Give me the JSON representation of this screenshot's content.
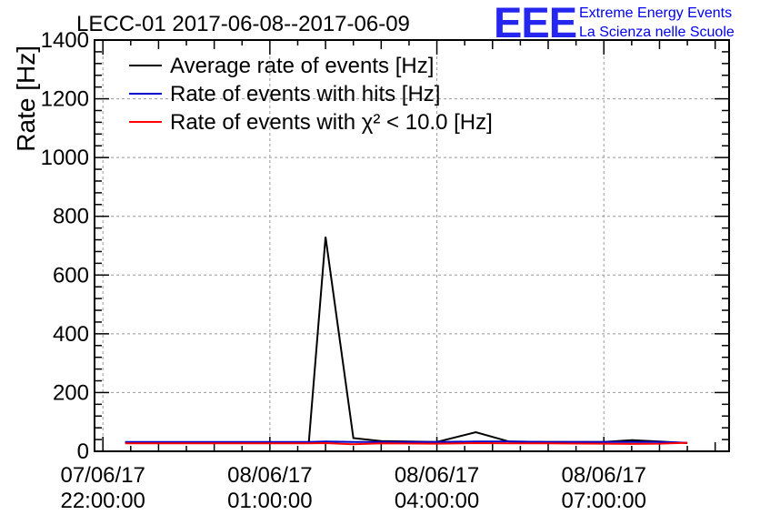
{
  "chart_data": {
    "type": "line",
    "title": "LECC-01 2017-06-08--2017-06-09",
    "ylabel": "Rate [Hz]",
    "xlabel": "",
    "ylim": [
      0,
      1400
    ],
    "y_ticks": [
      0,
      200,
      400,
      600,
      800,
      1000,
      1200,
      1400
    ],
    "x_ticks": [
      {
        "hour": 0,
        "date": "07/06/17",
        "time": "22:00:00"
      },
      {
        "hour": 3,
        "date": "08/06/17",
        "time": "01:00:00"
      },
      {
        "hour": 6,
        "date": "08/06/17",
        "time": "04:00:00"
      },
      {
        "hour": 9,
        "date": "08/06/17",
        "time": "07:00:00"
      }
    ],
    "x_axis_note": "x values are hours after 07/06/17 22:00:00",
    "xlim": [
      -0.15,
      11.25
    ],
    "grid": true,
    "legend_position": "top-left",
    "series": [
      {
        "name": "Average rate of events [Hz]",
        "color": "#000000",
        "x": [
          0.4,
          3.7,
          4.0,
          4.5,
          5.0,
          6.0,
          6.7,
          7.3,
          8.0,
          9.0,
          9.5,
          10.0,
          10.5
        ],
        "values": [
          30,
          30,
          730,
          45,
          35,
          32,
          65,
          33,
          32,
          32,
          38,
          33,
          28
        ]
      },
      {
        "name": "Rate of events with hits [Hz]",
        "color": "#0000cc",
        "x": [
          0.4,
          3.7,
          4.0,
          4.5,
          5.0,
          6.0,
          6.7,
          7.3,
          8.0,
          9.0,
          9.5,
          10.0,
          10.5
        ],
        "values": [
          32,
          32,
          33,
          32,
          32,
          32,
          33,
          33,
          32,
          32,
          32,
          32,
          29
        ]
      },
      {
        "name": "Rate of events with χ² < 10.0 [Hz]",
        "color": "#ff0000",
        "x": [
          0.4,
          3.7,
          4.0,
          4.5,
          5.0,
          6.0,
          6.7,
          7.3,
          8.0,
          9.0,
          9.5,
          10.0,
          10.5
        ],
        "values": [
          27,
          27,
          28,
          24,
          27,
          26,
          28,
          27,
          27,
          26,
          25,
          26,
          29
        ]
      }
    ]
  },
  "logo": {
    "mark": "EEE",
    "line1": "Extreme Energy Events",
    "line2": "La Scienza nelle Scuole",
    "color": "#0000ee"
  }
}
